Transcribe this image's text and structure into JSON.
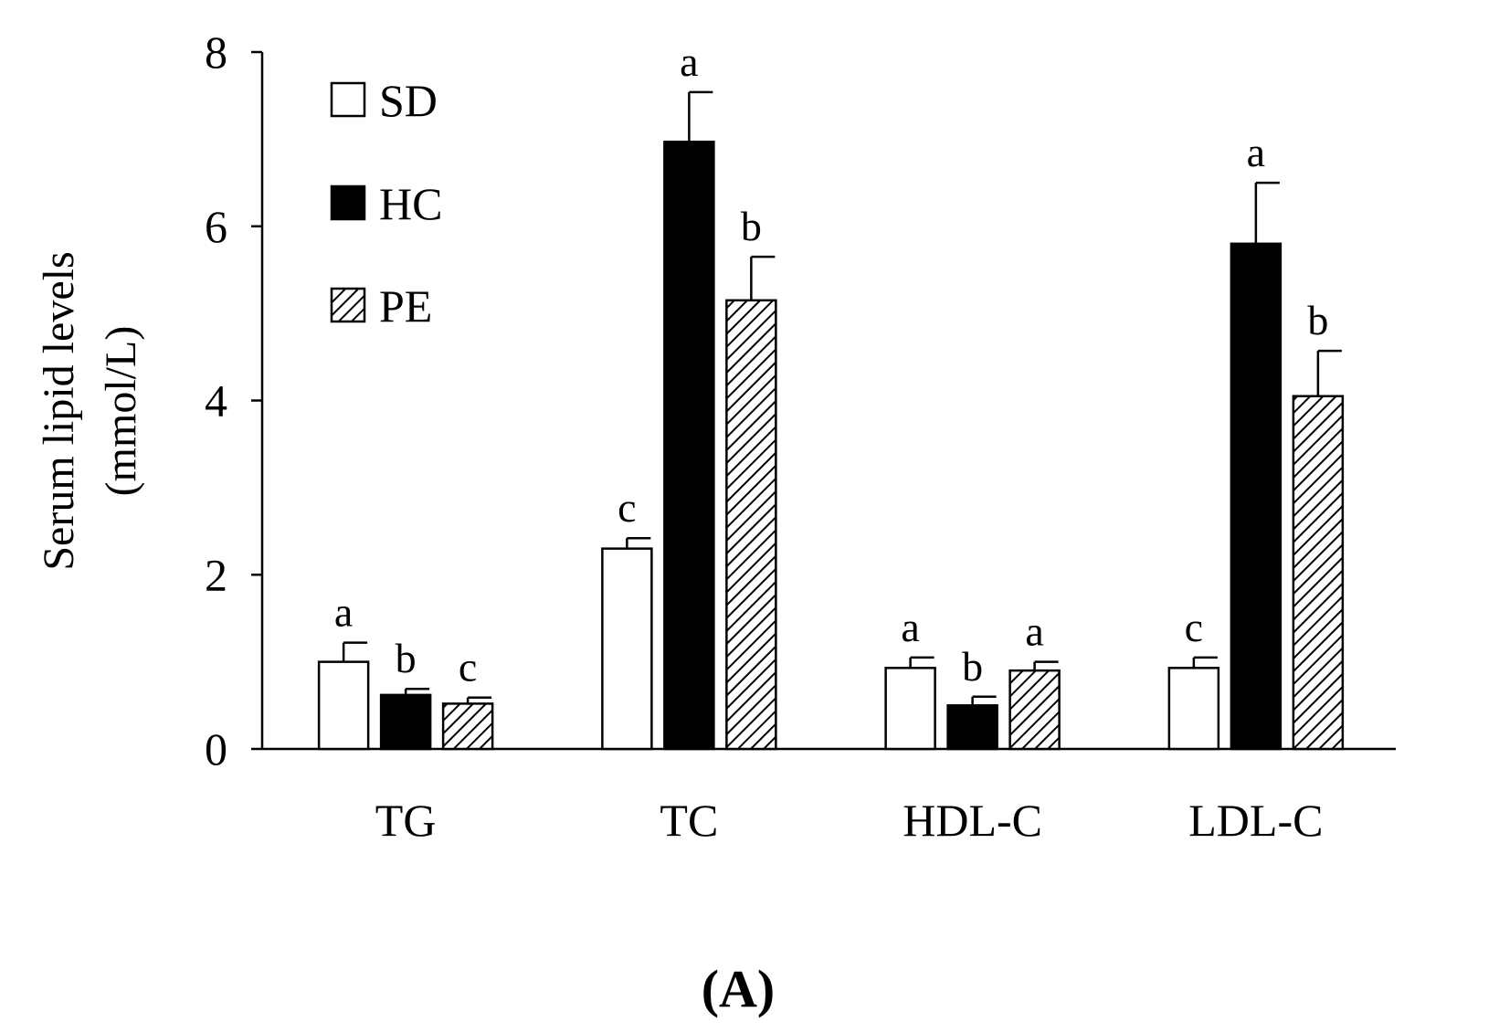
{
  "chart_data": {
    "type": "bar",
    "ylabel": [
      "Serum lipid levels",
      "(mmol/L)"
    ],
    "xlabel": "",
    "ylim": [
      0,
      8
    ],
    "yticks": [
      "0",
      "2",
      "4",
      "6",
      "8"
    ],
    "categories": [
      "TG",
      "TC",
      "HDL-C",
      "LDL-C"
    ],
    "series": [
      {
        "name": "SD",
        "fill": "white",
        "values": [
          1.0,
          2.3,
          0.93,
          0.93
        ],
        "errors": [
          0.22,
          0.12,
          0.12,
          0.12
        ],
        "labels": [
          "a",
          "c",
          "a",
          "c"
        ]
      },
      {
        "name": "HC",
        "fill": "black",
        "values": [
          0.62,
          6.97,
          0.5,
          5.8
        ],
        "errors": [
          0.07,
          0.57,
          0.1,
          0.7
        ],
        "labels": [
          "b",
          "a",
          "b",
          "a"
        ]
      },
      {
        "name": "PE",
        "fill": "hatched",
        "values": [
          0.52,
          5.15,
          0.9,
          4.05
        ],
        "errors": [
          0.07,
          0.5,
          0.1,
          0.52
        ],
        "labels": [
          "c",
          "b",
          "a",
          "b"
        ]
      }
    ],
    "legend_position": "top-left",
    "grid": false,
    "panel_label": "(A)"
  }
}
